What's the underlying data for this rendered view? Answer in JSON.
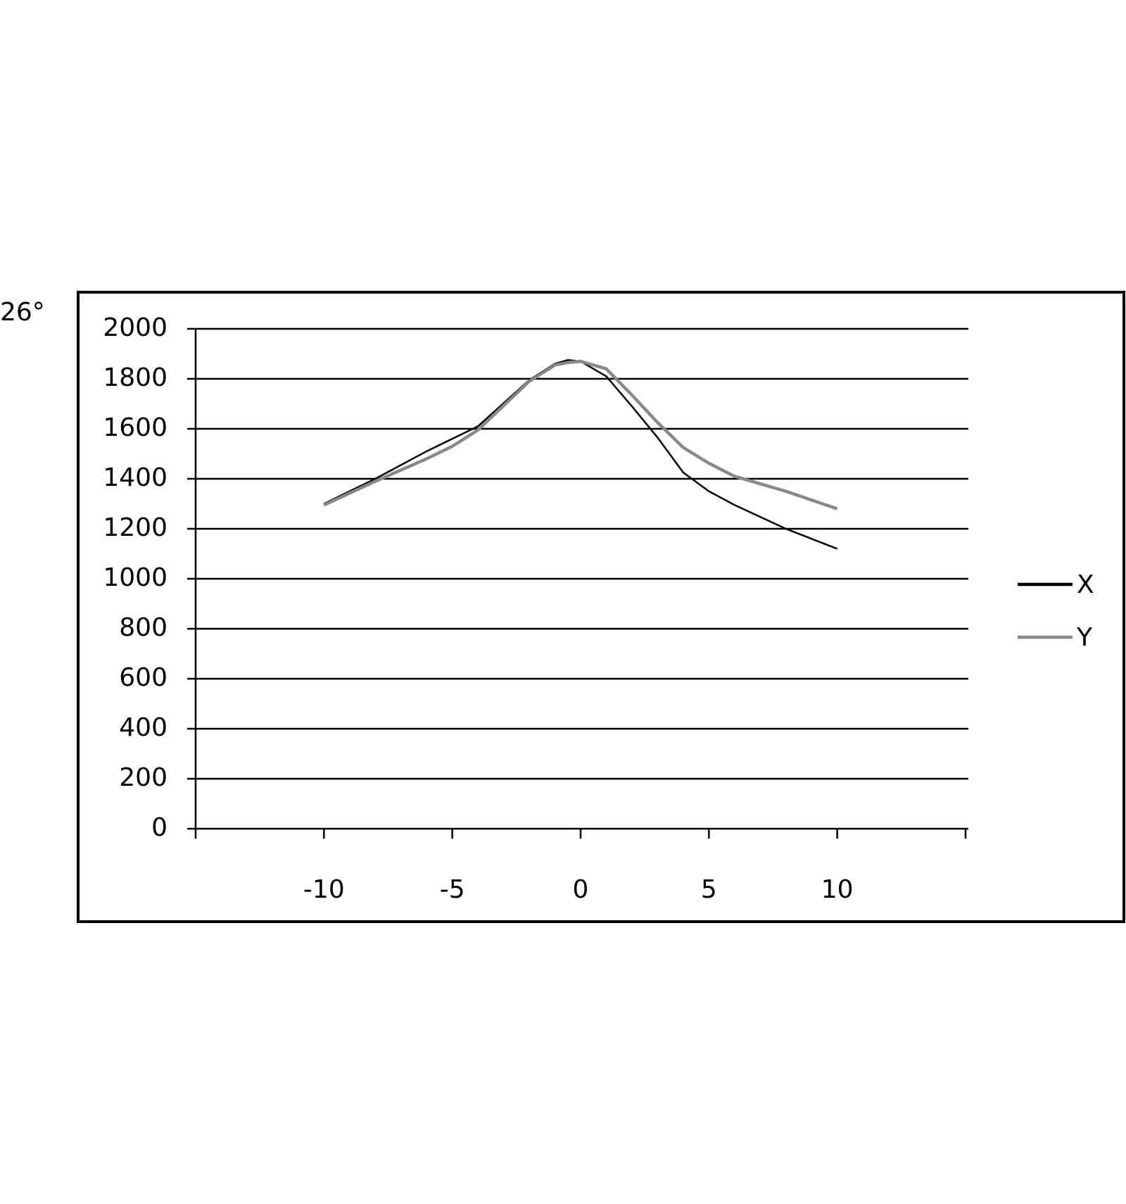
{
  "chart_data": {
    "type": "line",
    "annotation": "26°",
    "x": [
      -10,
      -8,
      -6,
      -5,
      -4,
      -2,
      -1,
      -0.5,
      0,
      1,
      2,
      3,
      4,
      5,
      6,
      8,
      10
    ],
    "series": [
      {
        "name": "X",
        "color": "#000000",
        "values": [
          1300,
          1400,
          1510,
          1560,
          1610,
          1795,
          1860,
          1875,
          1870,
          1810,
          1690,
          1565,
          1425,
          1350,
          1295,
          1200,
          1120
        ]
      },
      {
        "name": "Y",
        "color": "#888888",
        "values": [
          1295,
          1390,
          1480,
          1530,
          1595,
          1790,
          1855,
          1865,
          1870,
          1840,
          1735,
          1625,
          1525,
          1462,
          1410,
          1350,
          1280
        ]
      }
    ],
    "xlim": [
      -15,
      15
    ],
    "xticks": [
      -10,
      -5,
      0,
      5,
      10
    ],
    "ylim": [
      0,
      2000
    ],
    "yticks": [
      0,
      200,
      400,
      600,
      800,
      1000,
      1200,
      1400,
      1600,
      1800,
      2000
    ],
    "grid": true,
    "legend": "right"
  }
}
